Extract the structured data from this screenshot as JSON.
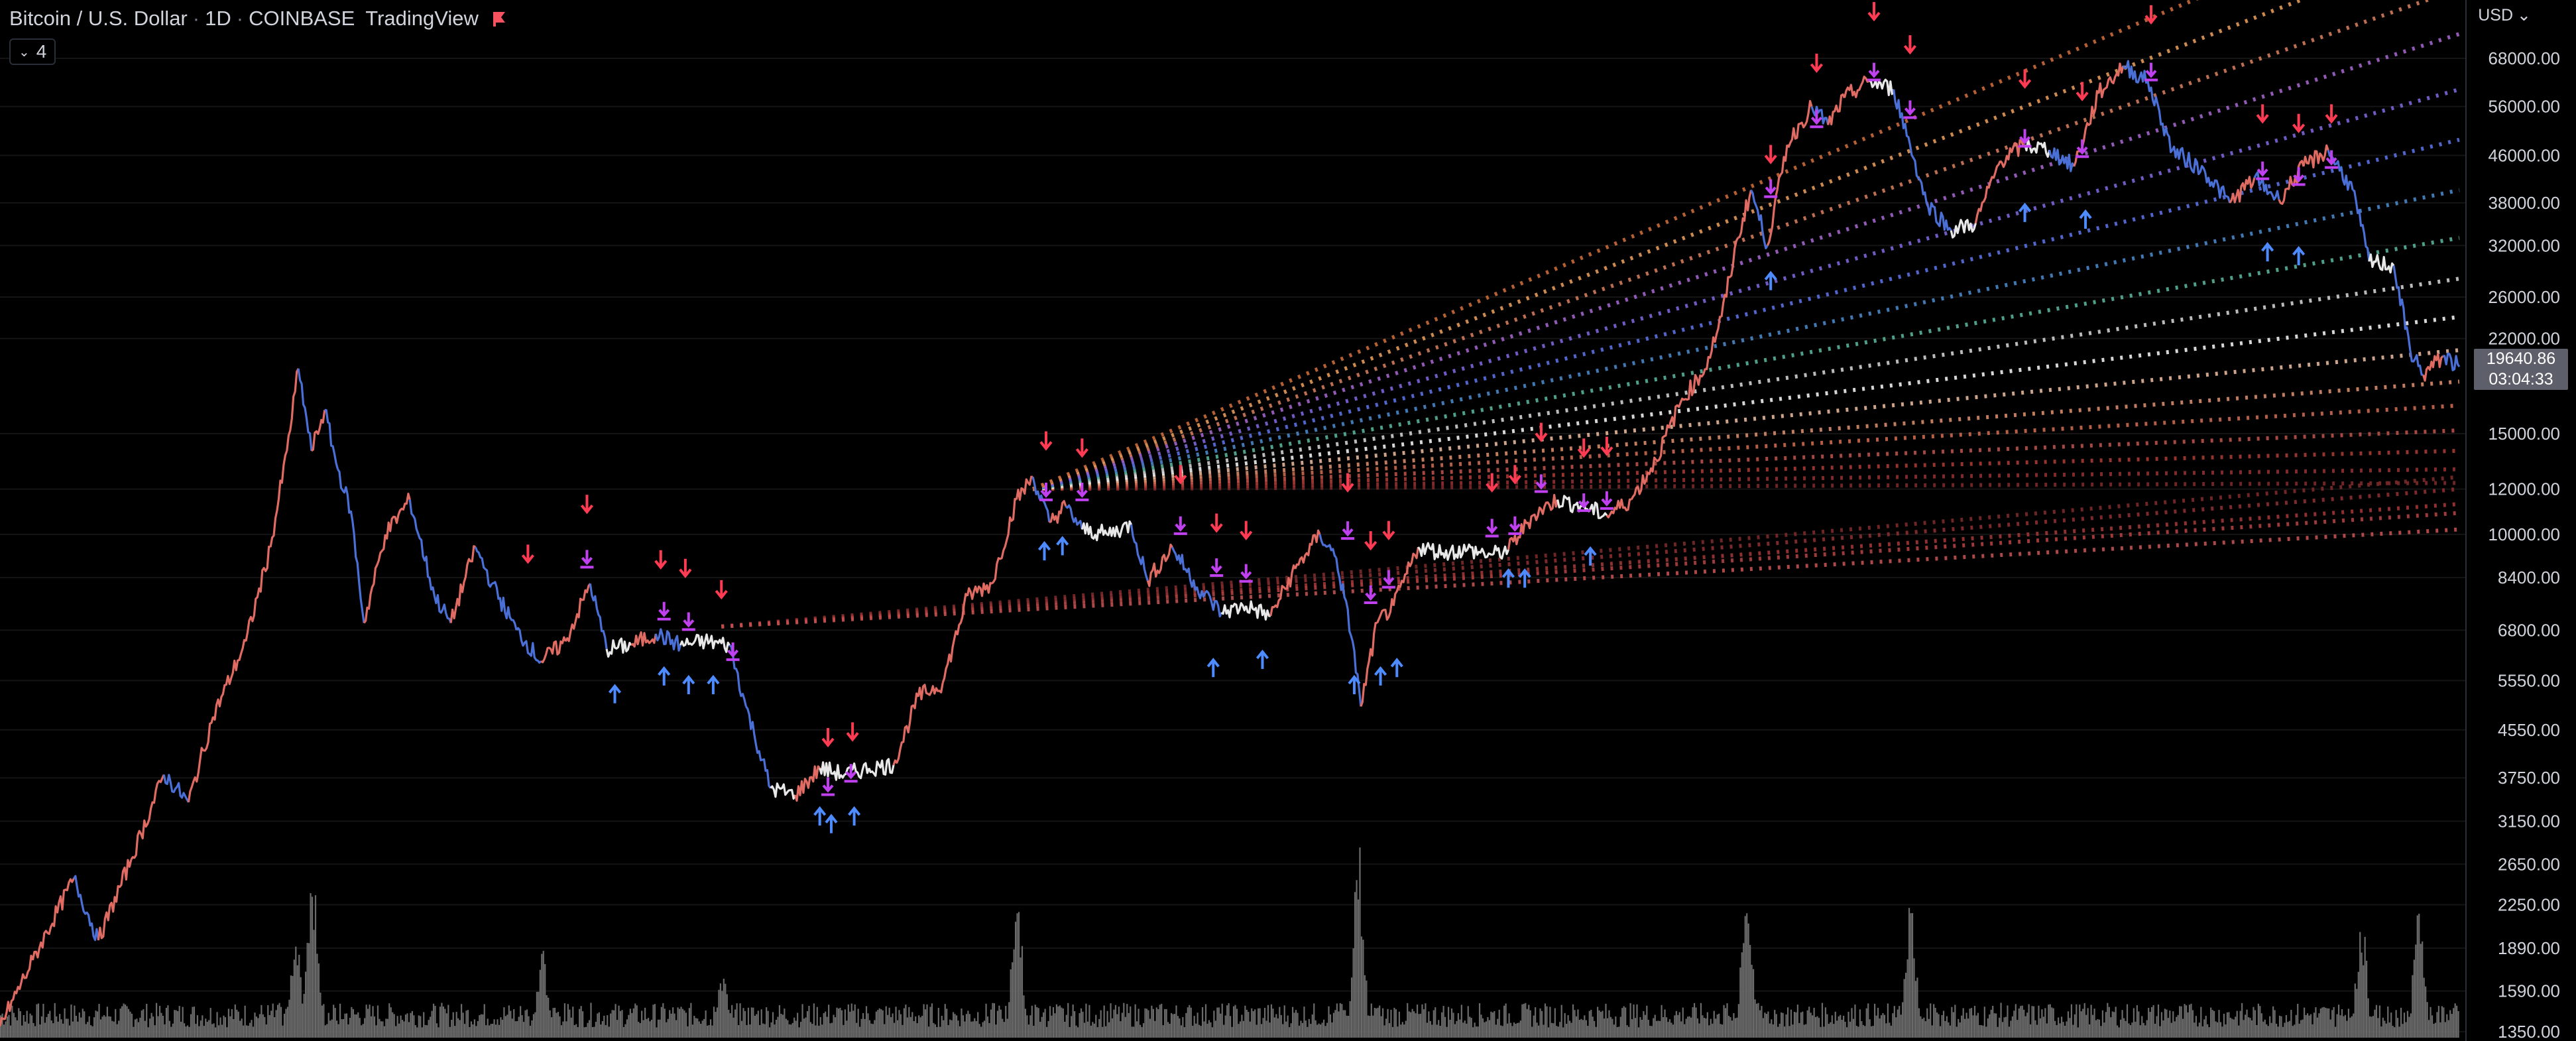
{
  "header": {
    "symbol": "Bitcoin / U.S. Dollar",
    "interval": "1D",
    "exchange": "COINBASE",
    "source": "TradingView"
  },
  "indicator_button": {
    "count": "4"
  },
  "currency_button": {
    "label": "USD"
  },
  "last_price": {
    "value": "19640.86",
    "countdown": "03:04:33"
  },
  "colors": {
    "background": "#000000",
    "bull": "#e06b63",
    "bear": "#4a6fd6",
    "neutral": "#e8e8e8",
    "marker_sell": "#ff3b54",
    "marker_buy": "#4d8bff",
    "marker_magenta": "#c040f0",
    "volume": "#6b6b6b"
  },
  "chart_data": {
    "type": "line",
    "title": "",
    "yscale": "log",
    "ylim": [
      1300,
      86000
    ],
    "y_ticks": [
      "68000.00",
      "56000.00",
      "46000.00",
      "38000.00",
      "32000.00",
      "26000.00",
      "22000.00",
      "15000.00",
      "12000.00",
      "10000.00",
      "8400.00",
      "6800.00",
      "5550.00",
      "4550.00",
      "3750.00",
      "3150.00",
      "2650.00",
      "2250.00",
      "1890.00",
      "1590.00",
      "1350.00"
    ],
    "price_points": [
      [
        0,
        1380
      ],
      [
        20,
        1800
      ],
      [
        45,
        2500
      ],
      [
        60,
        1950
      ],
      [
        80,
        2700
      ],
      [
        100,
        3800
      ],
      [
        115,
        3400
      ],
      [
        130,
        4800
      ],
      [
        150,
        6500
      ],
      [
        165,
        9500
      ],
      [
        175,
        14000
      ],
      [
        182,
        19500
      ],
      [
        190,
        14000
      ],
      [
        198,
        16500
      ],
      [
        206,
        13000
      ],
      [
        214,
        11000
      ],
      [
        222,
        7000
      ],
      [
        235,
        10000
      ],
      [
        250,
        11500
      ],
      [
        265,
        7800
      ],
      [
        275,
        7000
      ],
      [
        290,
        9500
      ],
      [
        300,
        8200
      ],
      [
        315,
        6800
      ],
      [
        330,
        6000
      ],
      [
        345,
        6500
      ],
      [
        360,
        8200
      ],
      [
        370,
        6300
      ],
      [
        385,
        6400
      ],
      [
        400,
        6700
      ],
      [
        415,
        6400
      ],
      [
        430,
        6500
      ],
      [
        445,
        6400
      ],
      [
        455,
        5000
      ],
      [
        470,
        3600
      ],
      [
        485,
        3500
      ],
      [
        500,
        3900
      ],
      [
        515,
        3800
      ],
      [
        530,
        3900
      ],
      [
        545,
        3950
      ],
      [
        560,
        5200
      ],
      [
        575,
        5500
      ],
      [
        590,
        7800
      ],
      [
        605,
        8200
      ],
      [
        620,
        11500
      ],
      [
        630,
        12600
      ],
      [
        640,
        10500
      ],
      [
        650,
        11200
      ],
      [
        660,
        10200
      ],
      [
        675,
        10000
      ],
      [
        690,
        10400
      ],
      [
        700,
        8300
      ],
      [
        715,
        9500
      ],
      [
        730,
        8100
      ],
      [
        745,
        7300
      ],
      [
        760,
        7500
      ],
      [
        775,
        7200
      ],
      [
        790,
        8700
      ],
      [
        805,
        10000
      ],
      [
        815,
        9100
      ],
      [
        825,
        6500
      ],
      [
        830,
        5000
      ],
      [
        840,
        7000
      ],
      [
        850,
        7500
      ],
      [
        865,
        9500
      ],
      [
        880,
        9300
      ],
      [
        895,
        9400
      ],
      [
        910,
        9200
      ],
      [
        920,
        9400
      ],
      [
        935,
        10800
      ],
      [
        950,
        11500
      ],
      [
        965,
        11200
      ],
      [
        980,
        10800
      ],
      [
        995,
        11500
      ],
      [
        1010,
        13500
      ],
      [
        1025,
        17000
      ],
      [
        1040,
        19500
      ],
      [
        1050,
        24000
      ],
      [
        1060,
        33000
      ],
      [
        1068,
        40000
      ],
      [
        1078,
        32000
      ],
      [
        1090,
        48000
      ],
      [
        1105,
        56000
      ],
      [
        1115,
        52000
      ],
      [
        1125,
        58000
      ],
      [
        1140,
        62000
      ],
      [
        1155,
        60000
      ],
      [
        1165,
        48000
      ],
      [
        1175,
        38000
      ],
      [
        1190,
        34000
      ],
      [
        1205,
        35000
      ],
      [
        1220,
        45000
      ],
      [
        1235,
        48000
      ],
      [
        1250,
        47000
      ],
      [
        1265,
        44000
      ],
      [
        1280,
        59000
      ],
      [
        1295,
        66000
      ],
      [
        1310,
        62000
      ],
      [
        1325,
        47000
      ],
      [
        1345,
        43000
      ],
      [
        1360,
        38000
      ],
      [
        1375,
        42000
      ],
      [
        1390,
        38500
      ],
      [
        1405,
        44000
      ],
      [
        1420,
        47000
      ],
      [
        1435,
        40000
      ],
      [
        1445,
        30000
      ],
      [
        1460,
        29500
      ],
      [
        1470,
        21000
      ],
      [
        1478,
        19000
      ],
      [
        1490,
        20500
      ],
      [
        1500,
        19640
      ]
    ],
    "sell_markers": [
      [
        322,
        9000
      ],
      [
        358,
        11000
      ],
      [
        403,
        8800
      ],
      [
        418,
        8500
      ],
      [
        440,
        7800
      ],
      [
        505,
        4300
      ],
      [
        520,
        4400
      ],
      [
        638,
        14200
      ],
      [
        660,
        13800
      ],
      [
        720,
        12400
      ],
      [
        742,
        10200
      ],
      [
        760,
        9900
      ],
      [
        822,
        12000
      ],
      [
        836,
        9500
      ],
      [
        847,
        9900
      ],
      [
        910,
        12000
      ],
      [
        924,
        12400
      ],
      [
        940,
        14700
      ],
      [
        966,
        13800
      ],
      [
        980,
        13900
      ],
      [
        1080,
        45000
      ],
      [
        1108,
        65000
      ],
      [
        1143,
        80000
      ],
      [
        1165,
        70000
      ],
      [
        1235,
        61000
      ],
      [
        1270,
        58000
      ],
      [
        1312,
        79000
      ],
      [
        1380,
        53000
      ],
      [
        1402,
        51000
      ],
      [
        1422,
        53000
      ]
    ],
    "buy_markers": [
      [
        375,
        5400
      ],
      [
        405,
        5800
      ],
      [
        420,
        5600
      ],
      [
        435,
        5600
      ],
      [
        500,
        3300
      ],
      [
        507,
        3200
      ],
      [
        521,
        3300
      ],
      [
        637,
        9600
      ],
      [
        648,
        9800
      ],
      [
        740,
        6000
      ],
      [
        770,
        6200
      ],
      [
        826,
        5600
      ],
      [
        842,
        5800
      ],
      [
        852,
        6000
      ],
      [
        920,
        8600
      ],
      [
        930,
        8600
      ],
      [
        970,
        9400
      ],
      [
        1080,
        28500
      ],
      [
        1235,
        37500
      ],
      [
        1272,
        36500
      ],
      [
        1383,
        32000
      ],
      [
        1402,
        31500
      ]
    ],
    "magenta_markers": [
      [
        358,
        9000
      ],
      [
        405,
        7300
      ],
      [
        420,
        7000
      ],
      [
        447,
        6200
      ],
      [
        505,
        3600
      ],
      [
        519,
        3800
      ],
      [
        638,
        11800
      ],
      [
        660,
        11800
      ],
      [
        720,
        10300
      ],
      [
        742,
        8700
      ],
      [
        760,
        8500
      ],
      [
        822,
        10100
      ],
      [
        836,
        7800
      ],
      [
        847,
        8300
      ],
      [
        910,
        10200
      ],
      [
        924,
        10300
      ],
      [
        940,
        12200
      ],
      [
        966,
        11300
      ],
      [
        980,
        11400
      ],
      [
        1080,
        40000
      ],
      [
        1108,
        53000
      ],
      [
        1143,
        64000
      ],
      [
        1165,
        55000
      ],
      [
        1235,
        49000
      ],
      [
        1270,
        47000
      ],
      [
        1312,
        64000
      ],
      [
        1380,
        43000
      ],
      [
        1402,
        42000
      ],
      [
        1422,
        45000
      ]
    ],
    "fan_groups": [
      {
        "origin": [
          440,
          6900
        ],
        "ends_y": [
          12600,
          12000,
          11300,
          10900,
          10200
        ]
      },
      {
        "origin": [
          630,
          12000
        ],
        "ends_y": [
          12300,
          13000,
          14000,
          15200,
          16800,
          18500,
          21000,
          24000,
          28000,
          33000,
          40000,
          49000,
          60000,
          75000,
          90000,
          110000,
          135000
        ]
      }
    ],
    "volume_peaks": [
      [
        180,
        0.55
      ],
      [
        190,
        0.9
      ],
      [
        330,
        0.45
      ],
      [
        440,
        0.35
      ],
      [
        620,
        0.75
      ],
      [
        828,
        1.0
      ],
      [
        1065,
        0.78
      ],
      [
        1165,
        0.7
      ],
      [
        1440,
        0.6
      ],
      [
        1475,
        0.68
      ]
    ]
  }
}
